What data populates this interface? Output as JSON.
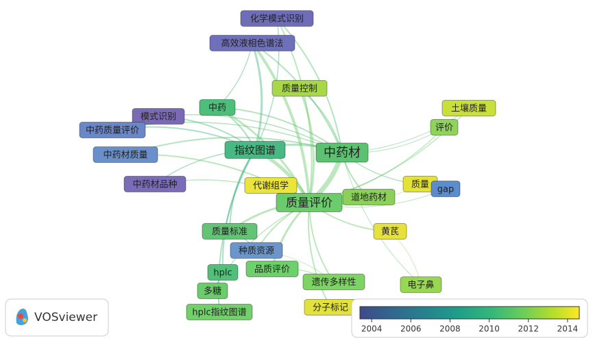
{
  "nodes": [
    {
      "label": "化学模式识别",
      "color": "#6f6db8"
    },
    {
      "label": "高效液相色谱法",
      "color": "#6f70ba"
    },
    {
      "label": "质量控制",
      "color": "#a8d84a"
    },
    {
      "label": "中药",
      "color": "#4cc07a"
    },
    {
      "label": "模式识别",
      "color": "#7a6ab5"
    },
    {
      "label": "土壤质量",
      "color": "#c9df3c"
    },
    {
      "label": "中药质量评价",
      "color": "#6a88c8"
    },
    {
      "label": "评价",
      "color": "#8fd35a"
    },
    {
      "label": "指纹图谱",
      "color": "#49b983"
    },
    {
      "label": "中药材",
      "color": "#5cc272"
    },
    {
      "label": "中药材质量",
      "color": "#6a90cc"
    },
    {
      "label": "代谢组学",
      "color": "#ebe43a"
    },
    {
      "label": "中药材品种",
      "color": "#7b6cb8"
    },
    {
      "label": "质量",
      "color": "#e4e238"
    },
    {
      "label": "gap",
      "color": "#5c8ccc"
    },
    {
      "label": "质量评价",
      "color": "#6ccc6c"
    },
    {
      "label": "道地药材",
      "color": "#8bd059"
    },
    {
      "label": "黄芪",
      "color": "#e6e13c"
    },
    {
      "label": "质量标准",
      "color": "#62c474"
    },
    {
      "label": "种质资源",
      "color": "#6a96cc"
    },
    {
      "label": "hplc",
      "color": "#52c07a"
    },
    {
      "label": "品质评价",
      "color": "#6ed06c"
    },
    {
      "label": "遗传多样性",
      "color": "#7ed463"
    },
    {
      "label": "电子鼻",
      "color": "#98d752"
    },
    {
      "label": "多糖",
      "color": "#6ccc6c"
    },
    {
      "label": "分子标记",
      "color": "#e2e13e"
    },
    {
      "label": "hplc指纹图谱",
      "color": "#72d06a"
    }
  ],
  "logo": "VOSviewer",
  "colorbar": {
    "lim": [
      2003.4,
      2014.6
    ],
    "ticks": [
      2004,
      2006,
      2008,
      2010,
      2012,
      2014
    ]
  }
}
